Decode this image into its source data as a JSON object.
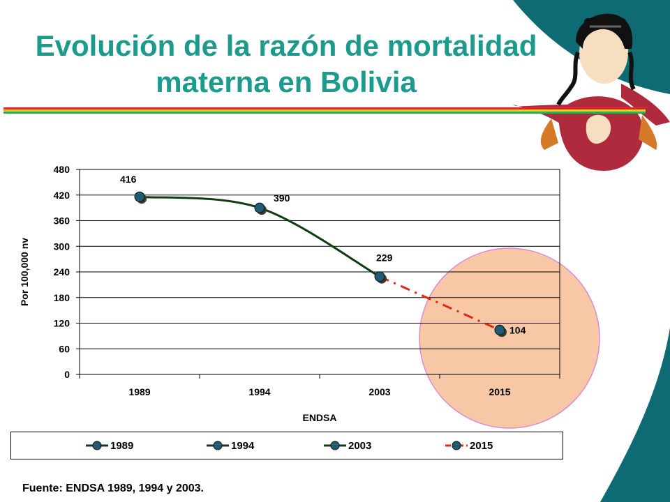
{
  "slide": {
    "title_line1": "Evolución de la razón de mortalidad",
    "title_line2": "materna en Bolivia",
    "source": "Fuente: ENDSA 1989, 1994 y 2003.",
    "colors": {
      "title": "#1c9a8c",
      "teal_band": "#0e6b73",
      "stripe_red": "#d62b2b",
      "stripe_yellow": "#f2d300",
      "stripe_green": "#3aa84a",
      "highlight_circle": "#f8c7a6",
      "highlight_circle_border": "#d98cd6"
    },
    "illustration": "bolivian-woman-with-baby-illustration"
  },
  "chart_data": {
    "type": "line",
    "categories": [
      "1989",
      "1994",
      "2003",
      "2015"
    ],
    "xlabel": "ENDSA",
    "ylabel": "Por 100,000 nv",
    "ylim": [
      0,
      480
    ],
    "yticks": [
      0,
      60,
      120,
      180,
      240,
      300,
      360,
      420,
      480
    ],
    "grid": true,
    "legend_position": "bottom",
    "series": [
      {
        "name": "1989",
        "values": [
          416,
          390,
          229,
          null
        ],
        "color": "#0f3d12",
        "marker": "#1f5c73"
      },
      {
        "name": "1994",
        "values": [
          null,
          null,
          null,
          null
        ],
        "color": "#0f3d12",
        "marker": "#1f5c73"
      },
      {
        "name": "2003",
        "values": [
          null,
          null,
          null,
          null
        ],
        "color": "#0f3d12",
        "marker": "#1f5c73"
      },
      {
        "name": "2015",
        "values": [
          null,
          null,
          229,
          104
        ],
        "color": "#e02a10",
        "marker": "#1f5c73",
        "dash": true
      }
    ],
    "data_labels": [
      "416",
      "390",
      "229",
      "104"
    ]
  }
}
